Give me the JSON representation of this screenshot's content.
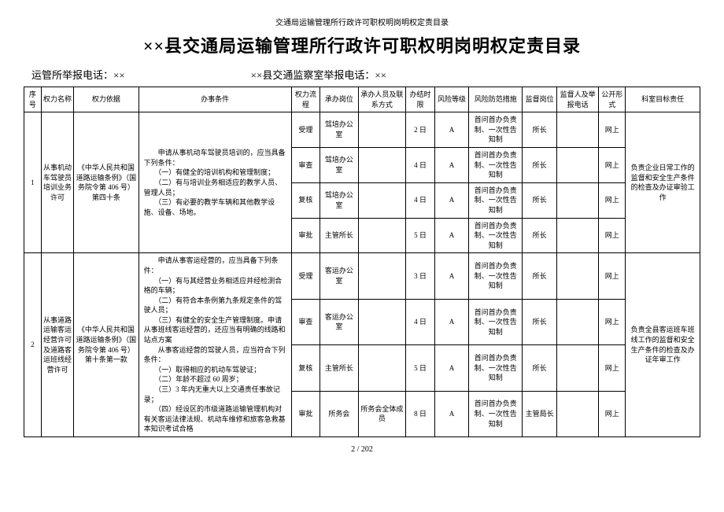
{
  "header_small": "交通局运输管理所行政许可职权明岗明权定责目录",
  "main_title": "××县交通局运输管理所行政许可职权明岗明权定责目录",
  "phone1_label": "运管所举报电话：××",
  "phone2_label": "××县交通监察室举报电话：××",
  "headers": {
    "seq": "序号",
    "name": "权力名称",
    "basis": "权力依据",
    "cond": "办事条件",
    "flow": "权力流程",
    "post": "承办岗位",
    "contact": "承办人员及联系方式",
    "limit": "办结时限",
    "risk": "风险等级",
    "meas": "风险防范措施",
    "spost": "监督岗位",
    "sphone": "监督人及举报电话",
    "open": "公开形式",
    "target": "科室目标责任"
  },
  "common": {
    "measure": "首问首办负责制、一次性告知制",
    "open": "网上",
    "riskA": "A",
    "director": "所长",
    "bureau_chief": "主管局长"
  },
  "rows": [
    {
      "seq": "1",
      "name": "从事机动车驾驶员培训业务许可",
      "basis": "《中华人民共和国道路运输条例》（国务院令第 406 号）第四十条",
      "cond": "　　申请从事机动车驾驶员培训的，应当具备下列条件：\n　　（一）有健全的培训机构和管理制度；\n　　（二）有与培训业务相适应的教学人员、管理人员；\n　　（三）有必要的教学车辆和其他教学设施、设备、场地。",
      "target": "负责企业日常工作的监督和安全生产条件的检查及办证审验工作",
      "steps": [
        {
          "flow": "受理",
          "post": "驾培办公室",
          "contact": "",
          "limit": "2 日",
          "spost": "所长"
        },
        {
          "flow": "审查",
          "post": "驾培办公室",
          "contact": "",
          "limit": "4 日",
          "spost": "所长"
        },
        {
          "flow": "复核",
          "post": "驾培办公室",
          "contact": "",
          "limit": "4 日",
          "spost": "所长"
        },
        {
          "flow": "审批",
          "post": "主管所长",
          "contact": "",
          "limit": "5 日",
          "spost": "所长"
        }
      ]
    },
    {
      "seq": "2",
      "name": "从事道路运输客运经营许可及道路客运班线经营许可",
      "basis": "《中华人民共和国道路运输条例》（国务院令第 406 号）第十条第一款",
      "cond": "　　申请从事客运经营的，应当具备下列条件：\n　　（一）有与其经营业务相适应并经检测合格的车辆；\n　　（二）有符合本条例第九条规定条件的驾驶人员；\n　　（三）有健全的安全生产管理制度。申请从事班线客运经营的，还应当有明确的线路和站点方案\n　　从事客运经营的驾驶人员，应当符合下列条件：\n　　（一）取得相应的机动车驾驶证；\n　　（二）年龄不超过 60 周岁；\n　　（三）3 年内无重大以上交通责任事故记录；\n　　（四）经设区的市级道路运输管理机构对有关客运法律法规、机动车维修和旅客急救基本知识考试合格",
      "target": "负责全县客运班车班线工作的监督和安全生产条件的检查及办证年审工作",
      "steps": [
        {
          "flow": "受理",
          "post": "客运办公室",
          "contact": "",
          "limit": "3 日",
          "spost": "所长"
        },
        {
          "flow": "审查",
          "post": "客运办公室",
          "contact": "",
          "limit": "4 日",
          "spost": "所长"
        },
        {
          "flow": "复核",
          "post": "主管所长",
          "contact": "",
          "limit": "5 日",
          "spost": "所长"
        },
        {
          "flow": "审批",
          "post": "所务会",
          "contact": "所务会全体成员",
          "limit": "8 日",
          "spost": "主管局长"
        }
      ]
    }
  ],
  "footer": "2  /  202"
}
